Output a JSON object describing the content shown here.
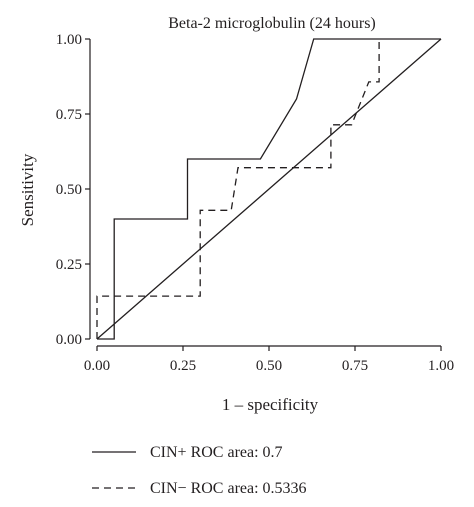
{
  "chart_data": {
    "type": "line",
    "title": "Beta-2 microglobulin (24 hours)",
    "xlabel": "1 – specificity",
    "ylabel": "Sensitivity",
    "xlim": [
      0,
      1
    ],
    "ylim": [
      0,
      1
    ],
    "x_ticks": [
      "0.00",
      "0.25",
      "0.50",
      "0.75",
      "1.00"
    ],
    "y_ticks": [
      "0.00",
      "0.25",
      "0.50",
      "0.75",
      "1.00"
    ],
    "grid": false,
    "legend_position": "bottom",
    "series": [
      {
        "name": "CIN+ ROC area: 0.7",
        "style": "solid",
        "x": [
          0,
          0.05,
          0.05,
          0.263,
          0.263,
          0.475,
          0.58,
          0.63,
          1.0
        ],
        "y": [
          0,
          0,
          0.4,
          0.4,
          0.6,
          0.6,
          0.8,
          1.0,
          1.0
        ]
      },
      {
        "name": "CIN− ROC area: 0.5336",
        "style": "dashed",
        "x": [
          0,
          0,
          0.3,
          0.3,
          0.39,
          0.41,
          0.68,
          0.68,
          0.74,
          0.79,
          0.82,
          0.82
        ],
        "y": [
          0,
          0.143,
          0.143,
          0.429,
          0.429,
          0.571,
          0.571,
          0.714,
          0.714,
          0.857,
          0.857,
          1.0
        ]
      },
      {
        "name": "",
        "style": "solid",
        "x": [
          0,
          1
        ],
        "y": [
          0,
          1
        ]
      }
    ]
  },
  "colors": {
    "ink": "#231f20",
    "background": "#ffffff"
  }
}
